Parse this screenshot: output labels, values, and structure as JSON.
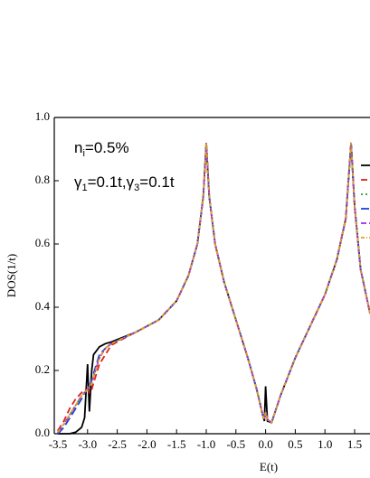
{
  "chart_data": {
    "type": "line",
    "xlabel": "E(t)",
    "ylabel": "DOS(1/t)",
    "annotations": [
      {
        "parts": [
          "n",
          "i",
          "=0.5%"
        ]
      },
      {
        "parts": [
          "γ",
          "1",
          "=0.1t,γ",
          "3",
          "=0.1t"
        ]
      }
    ],
    "xlim": [
      -3.55,
      1.76
    ],
    "ylim": [
      0,
      1
    ],
    "xticks": [
      {
        "value": -3.5,
        "label": "-3.5"
      },
      {
        "value": -3,
        "label": "-3.0"
      },
      {
        "value": -2.5,
        "label": "-2.5"
      },
      {
        "value": -2,
        "label": "-2.0"
      },
      {
        "value": -1.5,
        "label": "-1.5"
      },
      {
        "value": -1,
        "label": "-1.0"
      },
      {
        "value": -0.5,
        "label": "-0.5"
      },
      {
        "value": 0,
        "label": "0.0"
      },
      {
        "value": 0.5,
        "label": "0.5"
      },
      {
        "value": 1,
        "label": "1.0"
      },
      {
        "value": 1.5,
        "label": "1.5"
      }
    ],
    "yticks": [
      {
        "value": 0,
        "label": "0.0"
      },
      {
        "value": 0.2,
        "label": "0.2"
      },
      {
        "value": 0.4,
        "label": "0.4"
      },
      {
        "value": 0.6,
        "label": "0.6"
      },
      {
        "value": 0.8,
        "label": "0.8"
      },
      {
        "value": 1,
        "label": "1.0"
      }
    ],
    "x": [
      -3.5,
      -3.4,
      -3.3,
      -3.2,
      -3.1,
      -3.05,
      -3.0,
      -2.97,
      -2.93,
      -2.9,
      -2.8,
      -2.7,
      -2.6,
      -2.2,
      -1.8,
      -1.5,
      -1.3,
      -1.15,
      -1.05,
      -1.0,
      -0.95,
      -0.85,
      -0.7,
      -0.5,
      -0.3,
      -0.15,
      -0.05,
      -0.02,
      0.0,
      0.03,
      0.1,
      0.25,
      0.5,
      0.8,
      1.0,
      1.2,
      1.35,
      1.44,
      1.5,
      1.6,
      1.76
    ],
    "series": [
      {
        "color": "#000000",
        "dash": "",
        "values": [
          0,
          0,
          0,
          0.005,
          0.02,
          0.05,
          0.22,
          0.07,
          0.2,
          0.25,
          0.275,
          0.285,
          0.29,
          0.32,
          0.36,
          0.42,
          0.5,
          0.6,
          0.75,
          0.92,
          0.75,
          0.6,
          0.48,
          0.36,
          0.24,
          0.14,
          0.06,
          0.04,
          0.15,
          0.04,
          0.035,
          0.12,
          0.24,
          0.36,
          0.44,
          0.55,
          0.68,
          0.92,
          0.72,
          0.52,
          0.38
        ]
      },
      {
        "color": "#e02020",
        "dash": "7 4",
        "values": [
          0.01,
          0.04,
          0.08,
          0.11,
          0.13,
          0.14,
          0.14,
          0.13,
          0.14,
          0.16,
          0.22,
          0.25,
          0.28,
          0.32,
          0.36,
          0.42,
          0.5,
          0.6,
          0.75,
          0.92,
          0.75,
          0.6,
          0.48,
          0.36,
          0.24,
          0.14,
          0.06,
          0.045,
          0.07,
          0.045,
          0.035,
          0.12,
          0.24,
          0.36,
          0.44,
          0.55,
          0.68,
          0.92,
          0.72,
          0.52,
          0.38
        ]
      },
      {
        "color": "#2a9a2a",
        "dash": "2 3",
        "values": [
          0.005,
          0.03,
          0.06,
          0.09,
          0.12,
          0.13,
          0.14,
          0.15,
          0.16,
          0.18,
          0.24,
          0.27,
          0.285,
          0.32,
          0.36,
          0.42,
          0.5,
          0.6,
          0.75,
          0.92,
          0.75,
          0.6,
          0.48,
          0.36,
          0.24,
          0.14,
          0.06,
          0.045,
          0.07,
          0.045,
          0.035,
          0.12,
          0.24,
          0.36,
          0.44,
          0.55,
          0.68,
          0.92,
          0.72,
          0.52,
          0.38
        ]
      },
      {
        "color": "#2040e0",
        "dash": "9 4",
        "values": [
          0.0,
          0.02,
          0.05,
          0.08,
          0.11,
          0.13,
          0.14,
          0.15,
          0.17,
          0.19,
          0.25,
          0.27,
          0.285,
          0.32,
          0.36,
          0.42,
          0.5,
          0.6,
          0.75,
          0.92,
          0.75,
          0.6,
          0.48,
          0.36,
          0.24,
          0.14,
          0.06,
          0.045,
          0.07,
          0.045,
          0.035,
          0.12,
          0.24,
          0.36,
          0.44,
          0.55,
          0.68,
          0.92,
          0.72,
          0.52,
          0.38
        ]
      },
      {
        "color": "#9a30e0",
        "dash": "6 3 2 3",
        "values": [
          0.005,
          0.03,
          0.06,
          0.09,
          0.12,
          0.13,
          0.14,
          0.15,
          0.16,
          0.18,
          0.24,
          0.27,
          0.285,
          0.32,
          0.36,
          0.42,
          0.5,
          0.6,
          0.75,
          0.92,
          0.75,
          0.6,
          0.48,
          0.36,
          0.24,
          0.14,
          0.06,
          0.045,
          0.07,
          0.045,
          0.035,
          0.12,
          0.24,
          0.36,
          0.44,
          0.55,
          0.68,
          0.92,
          0.72,
          0.52,
          0.38
        ]
      },
      {
        "color": "#e0a020",
        "dash": "4 2 1 2",
        "values": [
          0.005,
          0.03,
          0.06,
          0.09,
          0.12,
          0.13,
          0.14,
          0.15,
          0.16,
          0.18,
          0.24,
          0.27,
          0.285,
          0.32,
          0.36,
          0.42,
          0.5,
          0.6,
          0.75,
          0.92,
          0.75,
          0.6,
          0.48,
          0.36,
          0.24,
          0.14,
          0.06,
          0.045,
          0.07,
          0.045,
          0.035,
          0.12,
          0.24,
          0.36,
          0.44,
          0.55,
          0.68,
          0.92,
          0.72,
          0.52,
          0.38
        ]
      }
    ]
  }
}
